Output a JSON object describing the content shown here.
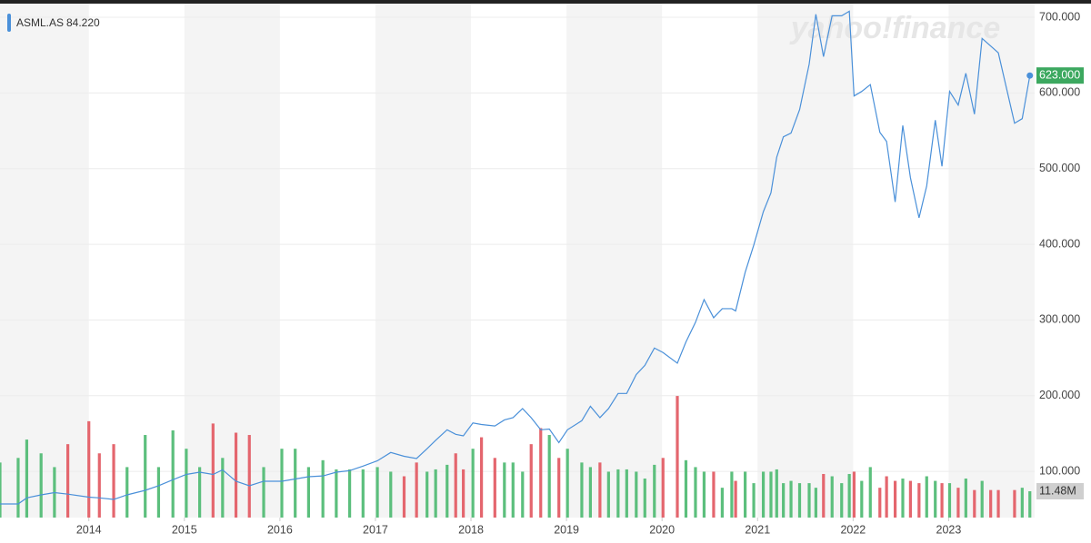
{
  "chart_data": {
    "type": "line",
    "watermark": "yahoo!finance",
    "xlim": [
      2013.07,
      2023.9
    ],
    "xticks": [
      2014,
      2015,
      2016,
      2017,
      2018,
      2019,
      2020,
      2021,
      2022,
      2023
    ],
    "ylim": [
      39,
      718
    ],
    "yticks": [
      {
        "value": 100,
        "label": "100.000"
      },
      {
        "value": 200,
        "label": "200.000"
      },
      {
        "value": 300,
        "label": "300.000"
      },
      {
        "value": 400,
        "label": "400.000"
      },
      {
        "value": 500,
        "label": "500.000"
      },
      {
        "value": 600,
        "label": "600.000"
      },
      {
        "value": 700,
        "label": "700.000"
      }
    ],
    "y2lim": [
      0,
      224
    ],
    "grid": true,
    "x": [
      2013.07,
      2013.26,
      2013.35,
      2013.5,
      2013.64,
      2013.78,
      2014.0,
      2014.11,
      2014.26,
      2014.4,
      2014.59,
      2014.73,
      2014.88,
      2015.02,
      2015.16,
      2015.3,
      2015.4,
      2015.54,
      2015.68,
      2015.83,
      2016.02,
      2016.16,
      2016.3,
      2016.45,
      2016.59,
      2016.73,
      2016.87,
      2017.02,
      2017.16,
      2017.3,
      2017.43,
      2017.54,
      2017.63,
      2017.75,
      2017.84,
      2017.92,
      2018.02,
      2018.11,
      2018.25,
      2018.35,
      2018.44,
      2018.54,
      2018.63,
      2018.73,
      2018.82,
      2018.92,
      2019.01,
      2019.16,
      2019.25,
      2019.35,
      2019.44,
      2019.54,
      2019.63,
      2019.73,
      2019.82,
      2019.92,
      2020.01,
      2020.16,
      2020.25,
      2020.35,
      2020.44,
      2020.54,
      2020.63,
      2020.73,
      2020.77,
      2020.87,
      2020.96,
      2021.06,
      2021.14,
      2021.2,
      2021.27,
      2021.35,
      2021.44,
      2021.54,
      2021.61,
      2021.69,
      2021.78,
      2021.88,
      2021.96,
      2022.01,
      2022.09,
      2022.18,
      2022.28,
      2022.35,
      2022.44,
      2022.52,
      2022.6,
      2022.69,
      2022.77,
      2022.86,
      2022.93,
      2023.01,
      2023.1,
      2023.18,
      2023.27,
      2023.35,
      2023.44,
      2023.52,
      2023.69,
      2023.77,
      2023.85
    ],
    "series": [
      {
        "name": "ASML.AS",
        "legend_value": "84.220",
        "last_label": "623.000",
        "color": "#4a90d9",
        "values": [
          57,
          57,
          65,
          69,
          72,
          70,
          66,
          65,
          63,
          69,
          75,
          81,
          89,
          96,
          99,
          96,
          102,
          87,
          81,
          87,
          87,
          90,
          93,
          94,
          99,
          101,
          107,
          114,
          125,
          120,
          117,
          130,
          141,
          155,
          149,
          147,
          164,
          162,
          160,
          168,
          171,
          183,
          171,
          155,
          156,
          138,
          155,
          167,
          186,
          171,
          183,
          203,
          203,
          228,
          240,
          263,
          257,
          243,
          271,
          297,
          327,
          303,
          315,
          315,
          312,
          363,
          399,
          443,
          468,
          515,
          542,
          547,
          578,
          638,
          704,
          648,
          702,
          702,
          708,
          596,
          602,
          611,
          548,
          536,
          456,
          557,
          488,
          435,
          477,
          564,
          503,
          602,
          584,
          626,
          572,
          672,
          662,
          653,
          560,
          566,
          623
        ]
      },
      {
        "type": "bar",
        "axis": "y2",
        "last_label": "11.48M",
        "up_color": "#5cbf7d",
        "down_color": "#e4666e",
        "values": [
          24,
          26,
          34,
          28,
          22,
          32,
          42,
          28,
          32,
          22,
          36,
          22,
          38,
          30,
          22,
          41,
          26,
          37,
          36,
          22,
          30,
          30,
          22,
          25,
          21,
          21,
          21,
          22,
          20,
          18,
          24,
          20,
          21,
          23,
          28,
          21,
          30,
          35,
          26,
          24,
          24,
          20,
          32,
          39,
          36,
          26,
          30,
          24,
          22,
          24,
          20,
          21,
          21,
          20,
          17,
          23,
          26,
          53,
          25,
          22,
          20,
          20,
          13,
          20,
          16,
          20,
          15,
          20,
          20,
          21,
          15,
          16,
          15,
          15,
          13,
          19,
          18,
          15,
          19,
          20,
          16,
          22,
          13,
          18,
          16,
          17,
          16,
          15,
          18,
          16,
          15,
          15,
          13,
          17,
          12,
          16,
          12,
          12,
          12,
          13,
          11.48
        ]
      }
    ]
  }
}
